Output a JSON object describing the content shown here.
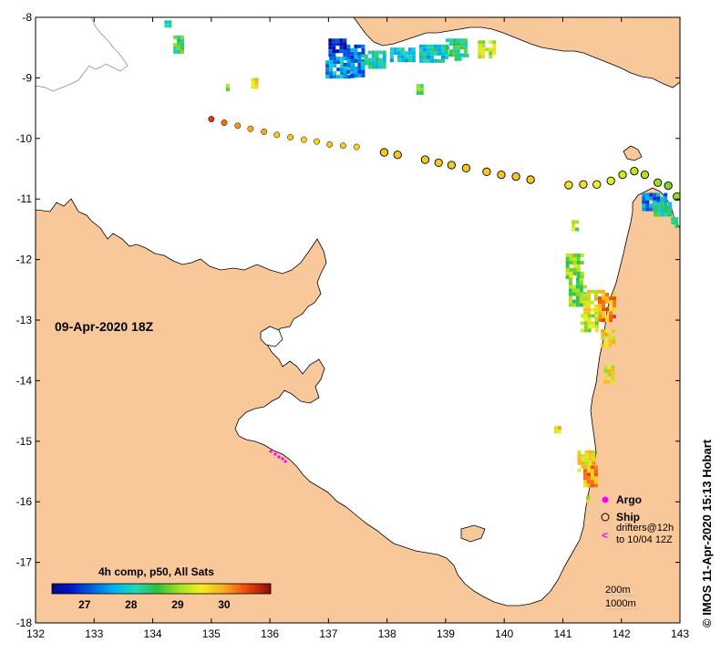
{
  "map": {
    "date_label": "09-Apr-2020 18Z",
    "x_ticks": [
      "132",
      "133",
      "134",
      "135",
      "136",
      "137",
      "138",
      "139",
      "140",
      "141",
      "142",
      "143"
    ],
    "y_ticks": [
      "-8",
      "-9",
      "-10",
      "-11",
      "-12",
      "-13",
      "-14",
      "-15",
      "-16",
      "-17",
      "-18"
    ],
    "lon_range": [
      132,
      143
    ],
    "lat_range": [
      -18,
      -8
    ],
    "colors": {
      "land": "#f9c89a",
      "sea": "#ffffff",
      "coast": "#000000"
    }
  },
  "colorbar": {
    "title": "4h comp, p50, All Sats",
    "ticks": [
      "27",
      "28",
      "29",
      "30"
    ],
    "tick_values": [
      27,
      28,
      29,
      30
    ],
    "range": [
      26.3,
      31.0
    ]
  },
  "legend": {
    "argo_label": "Argo",
    "ship_label": "Ship",
    "drifters_label": "drifters@12h",
    "drifters_label2": "to 10/04 12Z",
    "depth_200": "200m",
    "depth_1000": "1000m"
  },
  "credit": "© IMOS 11-Apr-2020 15:13 Hobart",
  "ship_track": [
    {
      "lon": 135.0,
      "lat": -9.68,
      "sst": 30.6
    },
    {
      "lon": 135.22,
      "lat": -9.74,
      "sst": 30.3
    },
    {
      "lon": 135.45,
      "lat": -9.79,
      "sst": 30.1
    },
    {
      "lon": 135.67,
      "lat": -9.84,
      "sst": 30.0
    },
    {
      "lon": 135.9,
      "lat": -9.89,
      "sst": 30.0
    },
    {
      "lon": 136.12,
      "lat": -9.94,
      "sst": 29.8
    },
    {
      "lon": 136.35,
      "lat": -9.98,
      "sst": 29.8
    },
    {
      "lon": 136.58,
      "lat": -10.02,
      "sst": 29.7
    },
    {
      "lon": 136.8,
      "lat": -10.05,
      "sst": 29.7
    },
    {
      "lon": 137.02,
      "lat": -10.1,
      "sst": 29.8
    },
    {
      "lon": 137.25,
      "lat": -10.12,
      "sst": 29.8
    },
    {
      "lon": 137.48,
      "lat": -10.14,
      "sst": 29.7
    },
    {
      "lon": 137.95,
      "lat": -10.23,
      "sst": 29.8
    },
    {
      "lon": 138.18,
      "lat": -10.27,
      "sst": 29.8
    },
    {
      "lon": 138.65,
      "lat": -10.35,
      "sst": 29.8
    },
    {
      "lon": 138.88,
      "lat": -10.4,
      "sst": 29.8
    },
    {
      "lon": 139.1,
      "lat": -10.44,
      "sst": 29.8
    },
    {
      "lon": 139.35,
      "lat": -10.49,
      "sst": 29.8
    },
    {
      "lon": 139.7,
      "lat": -10.55,
      "sst": 29.8
    },
    {
      "lon": 139.95,
      "lat": -10.6,
      "sst": 29.8
    },
    {
      "lon": 140.2,
      "lat": -10.63,
      "sst": 29.8
    },
    {
      "lon": 140.45,
      "lat": -10.68,
      "sst": 29.8
    },
    {
      "lon": 141.1,
      "lat": -10.77,
      "sst": 29.6
    },
    {
      "lon": 141.35,
      "lat": -10.76,
      "sst": 29.6
    },
    {
      "lon": 141.58,
      "lat": -10.76,
      "sst": 29.5
    },
    {
      "lon": 141.82,
      "lat": -10.7,
      "sst": 29.4
    },
    {
      "lon": 142.02,
      "lat": -10.6,
      "sst": 29.3
    },
    {
      "lon": 142.22,
      "lat": -10.54,
      "sst": 29.2
    },
    {
      "lon": 142.4,
      "lat": -10.6,
      "sst": 29.1
    },
    {
      "lon": 142.62,
      "lat": -10.73,
      "sst": 29.0
    },
    {
      "lon": 142.8,
      "lat": -10.78,
      "sst": 28.9
    },
    {
      "lon": 142.95,
      "lat": -10.96,
      "sst": 29.0
    }
  ],
  "sst_patches": [
    {
      "lon": 134.35,
      "lat": -8.3,
      "w": 0.15,
      "h": 0.25,
      "sst": 28.8
    },
    {
      "lon": 134.2,
      "lat": -8.05,
      "w": 0.12,
      "h": 0.1,
      "sst": 28.5
    },
    {
      "lon": 135.68,
      "lat": -9.0,
      "w": 0.1,
      "h": 0.15,
      "sst": 29.9
    },
    {
      "lon": 135.25,
      "lat": -9.1,
      "w": 0.08,
      "h": 0.1,
      "sst": 28.9
    },
    {
      "lon": 136.95,
      "lat": -8.65,
      "w": 0.45,
      "h": 0.35,
      "sst": 27.8
    },
    {
      "lon": 137.25,
      "lat": -8.45,
      "w": 0.35,
      "h": 0.5,
      "sst": 27.5
    },
    {
      "lon": 137.0,
      "lat": -8.35,
      "w": 0.25,
      "h": 0.3,
      "sst": 27.0
    },
    {
      "lon": 137.55,
      "lat": -8.55,
      "w": 0.4,
      "h": 0.25,
      "sst": 28.3
    },
    {
      "lon": 138.05,
      "lat": -8.5,
      "w": 0.4,
      "h": 0.2,
      "sst": 28.1
    },
    {
      "lon": 138.55,
      "lat": -8.45,
      "w": 0.45,
      "h": 0.3,
      "sst": 28.2
    },
    {
      "lon": 139.0,
      "lat": -8.35,
      "w": 0.35,
      "h": 0.25,
      "sst": 28.6
    },
    {
      "lon": 139.15,
      "lat": -8.6,
      "w": 0.2,
      "h": 0.12,
      "sst": 28.4
    },
    {
      "lon": 139.55,
      "lat": -8.38,
      "w": 0.3,
      "h": 0.3,
      "sst": 29.5
    },
    {
      "lon": 138.5,
      "lat": -9.1,
      "w": 0.12,
      "h": 0.18,
      "sst": 28.8
    },
    {
      "lon": 141.05,
      "lat": -11.9,
      "w": 0.25,
      "h": 0.4,
      "sst": 29.2
    },
    {
      "lon": 141.1,
      "lat": -12.3,
      "w": 0.3,
      "h": 0.45,
      "sst": 29.0
    },
    {
      "lon": 141.35,
      "lat": -12.5,
      "w": 0.35,
      "h": 0.45,
      "sst": 29.8
    },
    {
      "lon": 141.6,
      "lat": -12.55,
      "w": 0.25,
      "h": 0.45,
      "sst": 30.3
    },
    {
      "lon": 141.3,
      "lat": -12.9,
      "w": 0.25,
      "h": 0.3,
      "sst": 29.5
    },
    {
      "lon": 141.65,
      "lat": -13.15,
      "w": 0.2,
      "h": 0.25,
      "sst": 29.9
    },
    {
      "lon": 141.7,
      "lat": -13.75,
      "w": 0.15,
      "h": 0.25,
      "sst": 29.7
    },
    {
      "lon": 141.15,
      "lat": -11.35,
      "w": 0.1,
      "h": 0.15,
      "sst": 29.4
    },
    {
      "lon": 141.25,
      "lat": -15.15,
      "w": 0.25,
      "h": 0.35,
      "sst": 29.9
    },
    {
      "lon": 141.35,
      "lat": -15.4,
      "w": 0.2,
      "h": 0.35,
      "sst": 30.3
    },
    {
      "lon": 140.85,
      "lat": -14.75,
      "w": 0.1,
      "h": 0.12,
      "sst": 29.9
    },
    {
      "lon": 141.4,
      "lat": -15.9,
      "w": 0.05,
      "h": 0.1,
      "sst": 29.5
    },
    {
      "lon": 142.35,
      "lat": -10.9,
      "w": 0.4,
      "h": 0.3,
      "sst": 27.6
    },
    {
      "lon": 142.55,
      "lat": -11.05,
      "w": 0.25,
      "h": 0.2,
      "sst": 28.5
    },
    {
      "lon": 142.85,
      "lat": -11.3,
      "w": 0.1,
      "h": 0.15,
      "sst": 28.3
    }
  ]
}
